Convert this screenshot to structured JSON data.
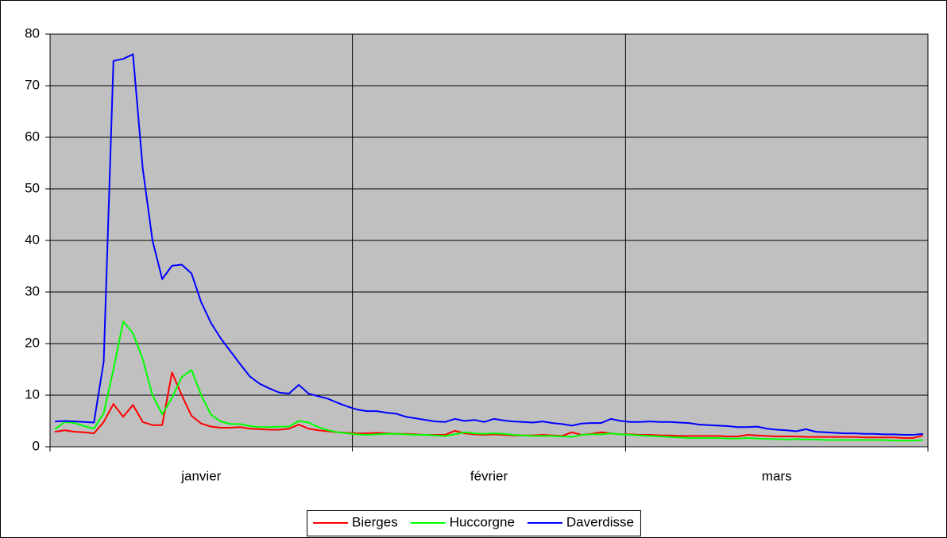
{
  "chart_data": {
    "type": "line",
    "categories": [
      "janvier",
      "janvier",
      "janvier",
      "janvier",
      "janvier",
      "janvier",
      "janvier",
      "janvier",
      "janvier",
      "janvier",
      "janvier",
      "janvier",
      "janvier",
      "janvier",
      "janvier",
      "janvier",
      "janvier",
      "janvier",
      "janvier",
      "janvier",
      "janvier",
      "janvier",
      "janvier",
      "janvier",
      "janvier",
      "janvier",
      "janvier",
      "janvier",
      "janvier",
      "janvier",
      "janvier",
      "février",
      "février",
      "février",
      "février",
      "février",
      "février",
      "février",
      "février",
      "février",
      "février",
      "février",
      "février",
      "février",
      "février",
      "février",
      "février",
      "février",
      "février",
      "février",
      "février",
      "février",
      "février",
      "février",
      "février",
      "février",
      "février",
      "février",
      "février",
      "mars",
      "mars",
      "mars",
      "mars",
      "mars",
      "mars",
      "mars",
      "mars",
      "mars",
      "mars",
      "mars",
      "mars",
      "mars",
      "mars",
      "mars",
      "mars",
      "mars",
      "mars",
      "mars",
      "mars",
      "mars",
      "mars",
      "mars",
      "mars",
      "mars",
      "mars",
      "mars",
      "mars",
      "mars",
      "mars",
      "mars"
    ],
    "series": [
      {
        "name": "Bierges",
        "color": "#ff0000",
        "values": [
          2.9,
          3.2,
          2.9,
          2.8,
          2.6,
          4.8,
          8.3,
          5.8,
          8.1,
          4.8,
          4.2,
          4.2,
          14.4,
          10.0,
          6.0,
          4.5,
          3.9,
          3.7,
          3.7,
          3.8,
          3.5,
          3.4,
          3.3,
          3.3,
          3.5,
          4.3,
          3.5,
          3.2,
          3.0,
          2.8,
          2.7,
          2.6,
          2.6,
          2.7,
          2.6,
          2.5,
          2.5,
          2.4,
          2.3,
          2.3,
          2.3,
          3.1,
          2.6,
          2.4,
          2.3,
          2.4,
          2.3,
          2.2,
          2.2,
          2.2,
          2.3,
          2.2,
          2.1,
          2.8,
          2.3,
          2.5,
          2.8,
          2.6,
          2.4,
          2.4,
          2.3,
          2.3,
          2.2,
          2.2,
          2.1,
          2.1,
          2.1,
          2.1,
          2.1,
          2.0,
          2.0,
          2.3,
          2.2,
          2.1,
          2.0,
          2.0,
          2.0,
          1.9,
          1.9,
          1.9,
          1.9,
          1.9,
          1.9,
          1.8,
          1.8,
          1.8,
          1.8,
          1.7,
          1.7,
          2.2
        ]
      },
      {
        "name": "Huccorgne",
        "color": "#00ff00",
        "values": [
          3.4,
          4.8,
          4.6,
          4.0,
          3.5,
          6.5,
          15.0,
          24.3,
          22.0,
          17.0,
          10.0,
          6.3,
          9.5,
          13.5,
          14.9,
          10.0,
          6.2,
          4.9,
          4.4,
          4.4,
          4.0,
          3.8,
          3.8,
          3.9,
          3.9,
          5.0,
          4.7,
          3.8,
          3.2,
          2.8,
          2.6,
          2.4,
          2.3,
          2.4,
          2.5,
          2.5,
          2.4,
          2.3,
          2.3,
          2.2,
          2.1,
          2.4,
          2.8,
          2.6,
          2.5,
          2.6,
          2.5,
          2.3,
          2.2,
          2.1,
          2.1,
          2.1,
          2.0,
          1.9,
          2.3,
          2.4,
          2.4,
          2.6,
          2.4,
          2.3,
          2.2,
          2.1,
          2.0,
          1.9,
          1.8,
          1.7,
          1.7,
          1.7,
          1.7,
          1.6,
          1.6,
          1.7,
          1.6,
          1.5,
          1.5,
          1.4,
          1.5,
          1.4,
          1.4,
          1.3,
          1.3,
          1.3,
          1.3,
          1.3,
          1.3,
          1.3,
          1.2,
          1.2,
          1.2,
          1.3
        ]
      },
      {
        "name": "Daverdisse",
        "color": "#0000ff",
        "values": [
          4.9,
          5.0,
          4.9,
          4.8,
          4.7,
          16.5,
          74.8,
          75.2,
          76.1,
          54,
          40,
          32.5,
          35.1,
          35.3,
          33.6,
          28,
          24,
          21,
          18.5,
          16,
          13.6,
          12.2,
          11.3,
          10.5,
          10.3,
          12.0,
          10.3,
          9.8,
          9.3,
          8.5,
          7.8,
          7.2,
          6.9,
          6.9,
          6.6,
          6.4,
          5.8,
          5.5,
          5.2,
          4.9,
          4.8,
          5.4,
          5.0,
          5.2,
          4.8,
          5.4,
          5.1,
          4.9,
          4.8,
          4.7,
          4.9,
          4.6,
          4.4,
          4.1,
          4.5,
          4.6,
          4.6,
          5.4,
          5.0,
          4.8,
          4.8,
          4.9,
          4.8,
          4.8,
          4.7,
          4.6,
          4.3,
          4.2,
          4.1,
          4.0,
          3.8,
          3.8,
          3.9,
          3.5,
          3.3,
          3.2,
          3.0,
          3.4,
          2.9,
          2.8,
          2.7,
          2.6,
          2.6,
          2.5,
          2.5,
          2.4,
          2.4,
          2.3,
          2.3,
          2.5
        ]
      }
    ],
    "ylim": [
      0,
      80
    ],
    "yticks": [
      0,
      10,
      20,
      30,
      40,
      50,
      60,
      70,
      80
    ],
    "grid": true,
    "legend": "bottom"
  }
}
